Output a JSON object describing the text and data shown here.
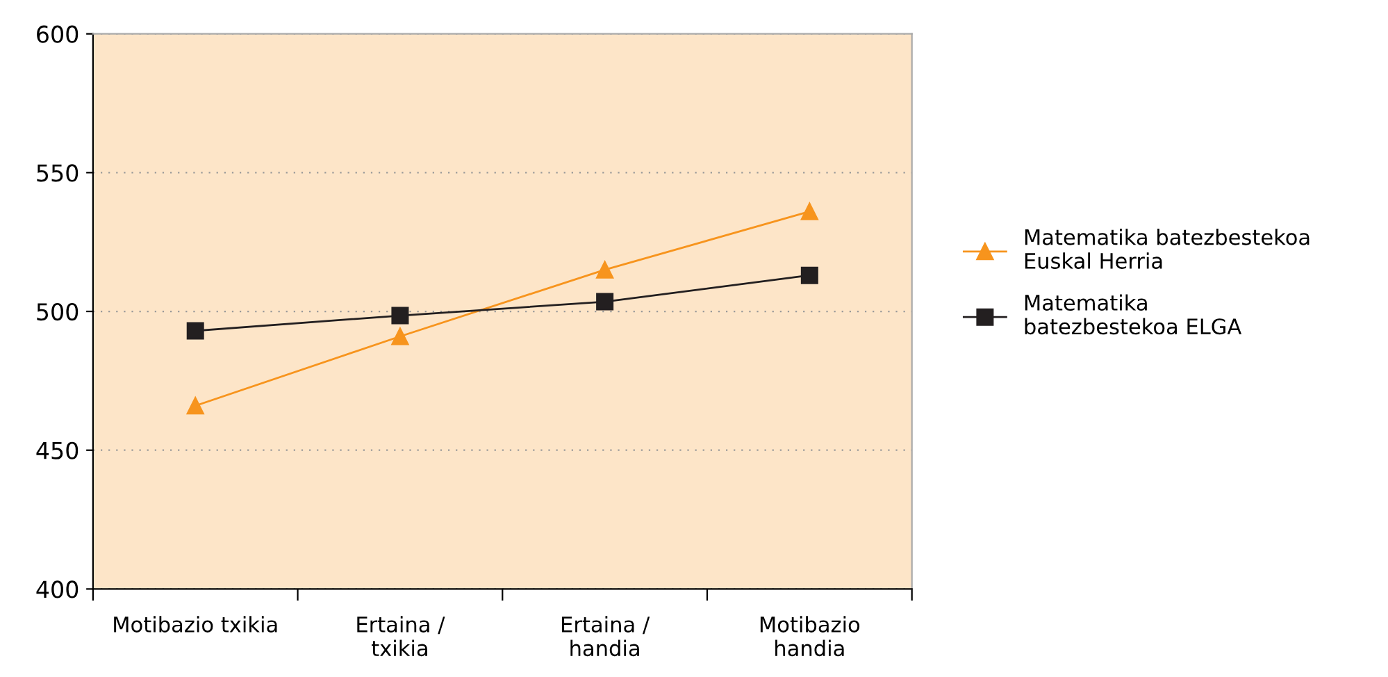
{
  "chart_data": {
    "type": "line",
    "categories": [
      "Motibazio txikia",
      "Ertaina /\ntxikia",
      "Ertaina /\nhandia",
      "Motibazio\nhandia"
    ],
    "series": [
      {
        "name": "Matematika batezbestekoa\nEuskal Herria",
        "color": "#f7941d",
        "values": [
          466,
          491,
          515,
          536
        ],
        "marker": "triangle"
      },
      {
        "name": "Matematika\nbatezbestekoa ELGA",
        "color": "#231f20",
        "values": [
          493,
          498.5,
          503.5,
          513
        ],
        "marker": "square"
      }
    ],
    "ylim": [
      400,
      600
    ],
    "yticks": [
      400,
      450,
      500,
      550,
      600
    ],
    "grid": "y",
    "legend": "right",
    "line_style": "solid"
  }
}
